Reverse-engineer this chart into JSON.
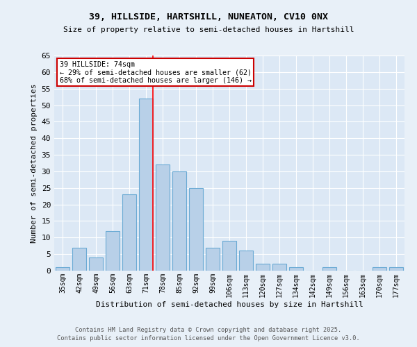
{
  "title1": "39, HILLSIDE, HARTSHILL, NUNEATON, CV10 0NX",
  "title2": "Size of property relative to semi-detached houses in Hartshill",
  "xlabel": "Distribution of semi-detached houses by size in Hartshill",
  "ylabel": "Number of semi-detached properties",
  "categories": [
    "35sqm",
    "42sqm",
    "49sqm",
    "56sqm",
    "63sqm",
    "71sqm",
    "78sqm",
    "85sqm",
    "92sqm",
    "99sqm",
    "106sqm",
    "113sqm",
    "120sqm",
    "127sqm",
    "134sqm",
    "142sqm",
    "149sqm",
    "156sqm",
    "163sqm",
    "170sqm",
    "177sqm"
  ],
  "values": [
    1,
    7,
    4,
    12,
    23,
    52,
    32,
    30,
    25,
    7,
    9,
    6,
    2,
    2,
    1,
    0,
    1,
    0,
    0,
    1,
    1
  ],
  "bar_color": "#b8d0e8",
  "bar_edge_color": "#6aaad4",
  "ref_line_label": "39 HILLSIDE: 74sqm",
  "annotation_line1": "← 29% of semi-detached houses are smaller (62)",
  "annotation_line2": "68% of semi-detached houses are larger (146) →",
  "box_color": "#cc0000",
  "ylim": [
    0,
    65
  ],
  "yticks": [
    0,
    5,
    10,
    15,
    20,
    25,
    30,
    35,
    40,
    45,
    50,
    55,
    60,
    65
  ],
  "footer1": "Contains HM Land Registry data © Crown copyright and database right 2025.",
  "footer2": "Contains public sector information licensed under the Open Government Licence v3.0.",
  "bg_color": "#e8f0f8",
  "plot_bg_color": "#dce8f5",
  "red_line_x": 5.43
}
